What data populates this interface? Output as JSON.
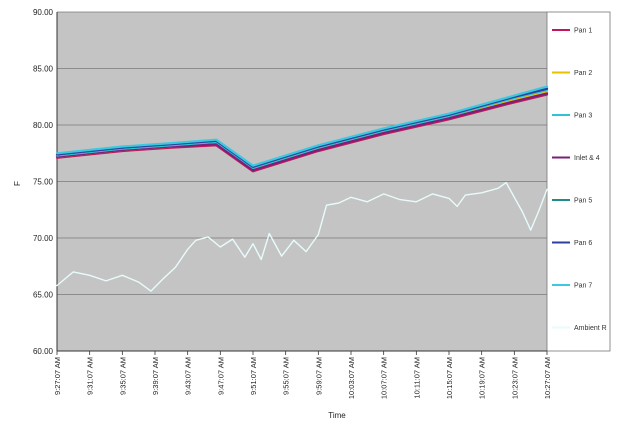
{
  "chart_data": {
    "type": "line",
    "title": "",
    "xlabel": "Time",
    "ylabel": "F",
    "ylim": [
      60,
      90
    ],
    "y_ticks": [
      "60.00",
      "65.00",
      "70.00",
      "75.00",
      "80.00",
      "85.00",
      "90.00"
    ],
    "x_ticks": [
      "9:27:07 AM",
      "9:31:07 AM",
      "9:35:07 AM",
      "9:39:07 AM",
      "9:43:07 AM",
      "9:47:07 AM",
      "9:51:07 AM",
      "9:55:07 AM",
      "9:59:07 AM",
      "10:03:07 AM",
      "10:07:07 AM",
      "10:11:07 AM",
      "10:15:07 AM",
      "10:19:07 AM",
      "10:23:07 AM",
      "10:27:07 AM"
    ],
    "x_minutes": [
      0,
      4,
      8,
      12,
      16,
      20,
      24,
      28,
      32,
      36,
      40,
      44,
      48,
      52,
      56,
      60
    ],
    "grid": true,
    "plot_background": "#c4c4c4",
    "legend_position": "right",
    "series": [
      {
        "name": "Pan 1",
        "color": "#c2185b",
        "x": [
          0,
          8,
          14,
          19.5,
          24,
          32,
          40,
          48,
          56,
          60
        ],
        "values": [
          77.1,
          77.7,
          78.0,
          78.2,
          75.9,
          77.7,
          79.2,
          80.5,
          82.0,
          82.7
        ]
      },
      {
        "name": "Pan 2",
        "color": "#e6c200",
        "x": [
          0,
          8,
          14,
          19.5,
          24,
          32,
          40,
          48,
          56,
          60
        ],
        "values": [
          77.2,
          77.8,
          78.1,
          78.4,
          76.1,
          77.9,
          79.4,
          80.7,
          82.2,
          82.9
        ]
      },
      {
        "name": "Pan 3",
        "color": "#2ec4d6",
        "x": [
          0,
          8,
          14,
          19.5,
          24,
          32,
          40,
          48,
          56,
          60
        ],
        "values": [
          77.3,
          77.9,
          78.2,
          78.5,
          76.2,
          78.0,
          79.5,
          80.8,
          82.4,
          83.1
        ]
      },
      {
        "name": "Inlet & 4",
        "color": "#7b1f7a",
        "x": [
          0,
          8,
          14,
          19.5,
          24,
          32,
          40,
          48,
          56,
          60
        ],
        "values": [
          77.2,
          77.8,
          78.1,
          78.3,
          76.0,
          77.8,
          79.3,
          80.6,
          82.1,
          82.8
        ]
      },
      {
        "name": "Pan 5",
        "color": "#1f8a8a",
        "x": [
          0,
          8,
          14,
          19.5,
          24,
          32,
          40,
          48,
          56,
          60
        ],
        "values": [
          77.4,
          78.0,
          78.3,
          78.6,
          76.3,
          78.1,
          79.6,
          80.9,
          82.5,
          83.2
        ]
      },
      {
        "name": "Pan 6",
        "color": "#2f3f9f",
        "x": [
          0,
          8,
          14,
          19.5,
          24,
          32,
          40,
          48,
          56,
          60
        ],
        "values": [
          77.4,
          78.0,
          78.3,
          78.6,
          76.3,
          78.1,
          79.6,
          80.9,
          82.5,
          83.2
        ]
      },
      {
        "name": "Pan 7",
        "color": "#3cc8e0",
        "x": [
          0,
          8,
          14,
          19.5,
          24,
          32,
          40,
          48,
          56,
          60
        ],
        "values": [
          77.5,
          78.1,
          78.4,
          78.7,
          76.4,
          78.2,
          79.7,
          81.0,
          82.6,
          83.4
        ]
      },
      {
        "name": "Ambient R",
        "color": "#e8fbfb",
        "x": [
          0,
          2,
          4,
          6,
          8,
          10,
          11.5,
          13,
          14.5,
          16,
          17,
          18.5,
          20,
          21.5,
          23,
          24,
          25,
          26,
          27.5,
          29,
          30.5,
          32,
          33,
          34.5,
          36,
          38,
          40,
          42,
          44,
          46,
          48,
          49,
          50,
          52,
          54,
          55,
          56,
          57,
          58,
          59,
          60
        ],
        "values": [
          65.8,
          67.0,
          66.7,
          66.2,
          66.7,
          66.1,
          65.3,
          66.4,
          67.4,
          69.0,
          69.8,
          70.1,
          69.2,
          69.9,
          68.3,
          69.5,
          68.1,
          70.4,
          68.4,
          69.8,
          68.8,
          70.3,
          72.9,
          73.1,
          73.6,
          73.2,
          73.9,
          73.4,
          73.2,
          73.9,
          73.5,
          72.8,
          73.8,
          74.0,
          74.4,
          74.9,
          73.6,
          72.3,
          70.7,
          72.4,
          74.3
        ]
      }
    ]
  }
}
